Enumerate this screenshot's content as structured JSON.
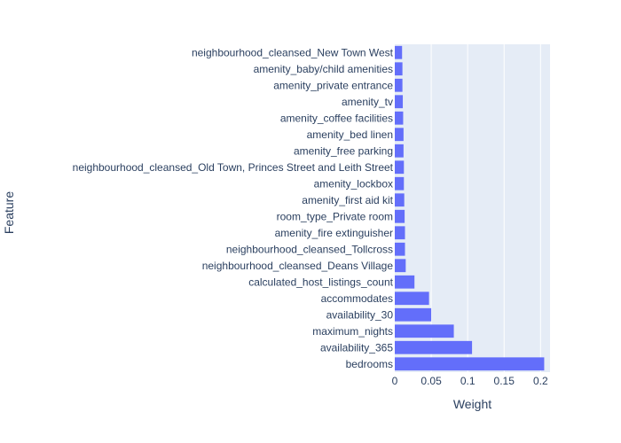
{
  "chart_data": {
    "type": "bar",
    "orientation": "horizontal",
    "title": "",
    "xlabel": "Weight",
    "ylabel": "Feature",
    "xlim": [
      0,
      0.213
    ],
    "xticks": [
      0,
      0.05,
      0.1,
      0.15,
      0.2
    ],
    "xtick_labels": [
      "0",
      "0.05",
      "0.1",
      "0.15",
      "0.2"
    ],
    "grid": true,
    "legend": "none",
    "categories": [
      "bedrooms",
      "availability_365",
      "maximum_nights",
      "availability_30",
      "accommodates",
      "calculated_host_listings_count",
      "neighbourhood_cleansed_Deans Village",
      "neighbourhood_cleansed_Tollcross",
      "amenity_fire extinguisher",
      "room_type_Private room",
      "amenity_first aid kit",
      "amenity_lockbox",
      "neighbourhood_cleansed_Old Town, Princes Street and Leith Street",
      "amenity_free parking",
      "amenity_bed linen",
      "amenity_coffee facilities",
      "amenity_tv",
      "amenity_private entrance",
      "amenity_baby/child amenities",
      "neighbourhood_cleansed_New Town West"
    ],
    "values": [
      0.205,
      0.106,
      0.081,
      0.05,
      0.047,
      0.027,
      0.015,
      0.014,
      0.014,
      0.0135,
      0.013,
      0.0125,
      0.0125,
      0.012,
      0.012,
      0.0115,
      0.011,
      0.0105,
      0.0105,
      0.01
    ],
    "bar_color": "#636efa",
    "plot_bg": "#e5ecf6",
    "grid_color": "#ffffff",
    "text_color": "#2a3f5f"
  }
}
